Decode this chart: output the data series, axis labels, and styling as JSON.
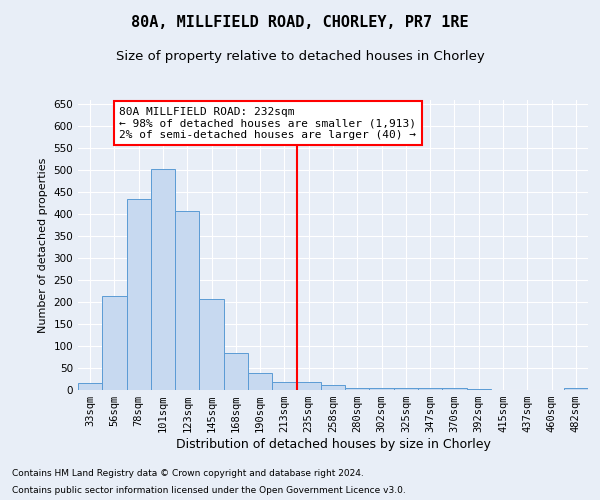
{
  "title": "80A, MILLFIELD ROAD, CHORLEY, PR7 1RE",
  "subtitle": "Size of property relative to detached houses in Chorley",
  "xlabel": "Distribution of detached houses by size in Chorley",
  "ylabel": "Number of detached properties",
  "footer1": "Contains HM Land Registry data © Crown copyright and database right 2024.",
  "footer2": "Contains public sector information licensed under the Open Government Licence v3.0.",
  "categories": [
    "33sqm",
    "56sqm",
    "78sqm",
    "101sqm",
    "123sqm",
    "145sqm",
    "168sqm",
    "190sqm",
    "213sqm",
    "235sqm",
    "258sqm",
    "280sqm",
    "302sqm",
    "325sqm",
    "347sqm",
    "370sqm",
    "392sqm",
    "415sqm",
    "437sqm",
    "460sqm",
    "482sqm"
  ],
  "values": [
    15,
    213,
    435,
    503,
    408,
    207,
    85,
    38,
    18,
    18,
    11,
    5,
    4,
    5,
    4,
    5,
    3,
    0,
    0,
    0,
    5
  ],
  "bar_color": "#c7d9f0",
  "bar_edge_color": "#5b9bd5",
  "vline_x": 8.5,
  "vline_color": "red",
  "annotation_text": "80A MILLFIELD ROAD: 232sqm\n← 98% of detached houses are smaller (1,913)\n2% of semi-detached houses are larger (40) →",
  "annotation_box_color": "white",
  "annotation_box_edge_color": "red",
  "ylim": [
    0,
    660
  ],
  "yticks": [
    0,
    50,
    100,
    150,
    200,
    250,
    300,
    350,
    400,
    450,
    500,
    550,
    600,
    650
  ],
  "background_color": "#e8eef7",
  "title_fontsize": 11,
  "subtitle_fontsize": 9.5,
  "xlabel_fontsize": 9,
  "ylabel_fontsize": 8,
  "tick_fontsize": 7.5,
  "annotation_fontsize": 8,
  "footer_fontsize": 6.5
}
